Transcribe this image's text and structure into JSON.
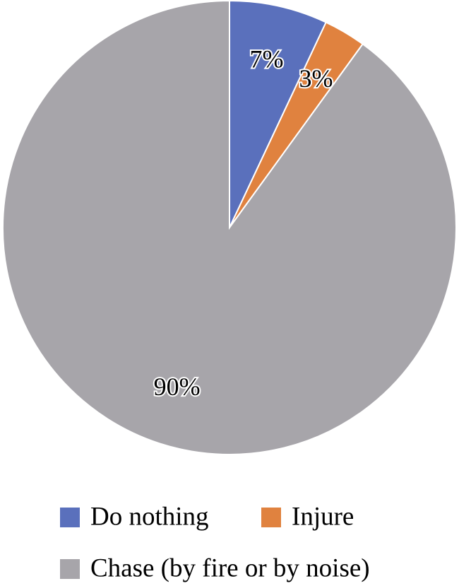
{
  "chart_data": {
    "type": "pie",
    "categories": [
      "Do nothing",
      "Injure",
      "Chase (by fire or by noise)"
    ],
    "values": [
      7,
      3,
      90
    ],
    "value_labels": [
      "7%",
      "3%",
      "90%"
    ],
    "colors": [
      "#5a70bc",
      "#e0823f",
      "#a7a5aa"
    ],
    "start_angle": 0,
    "direction": "clockwise"
  }
}
